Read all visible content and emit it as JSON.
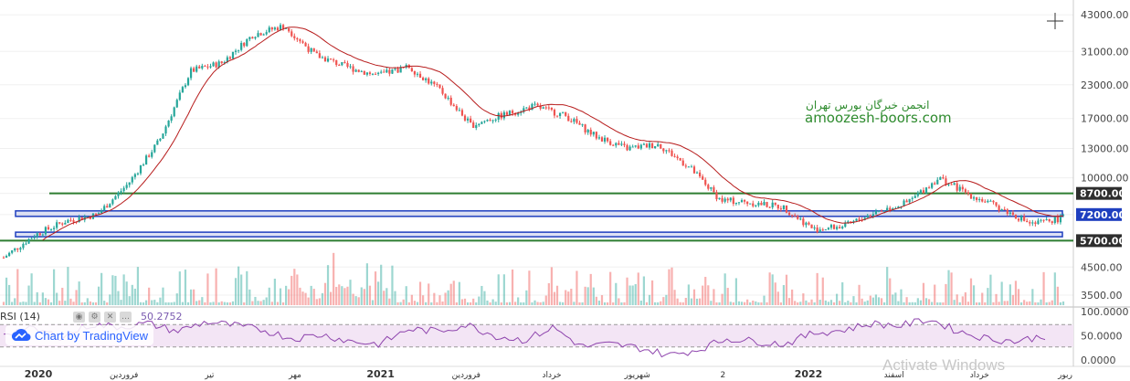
{
  "chart_data": {
    "type": "candlestick",
    "watermark": {
      "fa": "انجمن خبرگان بورس تهران",
      "en": "amoozesh-boors.com"
    },
    "price_axis_ticks": [
      "43000.00",
      "31000.00",
      "23000.00",
      "17000.00",
      "13000.00",
      "10000.00",
      "8700.00",
      "7200.00",
      "5700.00",
      "4500.00",
      "3500.00"
    ],
    "levels": [
      {
        "label": "8700.00",
        "value": 8700,
        "kind": "green-line",
        "color": "#2e7d32"
      },
      {
        "label": "7200.00",
        "value": 7200,
        "kind": "blue-box",
        "color": "#1f3fbf"
      },
      {
        "label": "5700.00",
        "value": 5700,
        "kind": "green-line",
        "color": "#2e7d32"
      }
    ],
    "time_labels": [
      "2020",
      "فروردین",
      "تیر",
      "مهر",
      "2021",
      "فروردین",
      "خرداد",
      "شهریور",
      "2",
      "2022",
      "اسفند",
      "خرداد",
      "ربور"
    ],
    "price_path": [
      [
        "2019-12",
        4900
      ],
      [
        "2020-01",
        6000
      ],
      [
        "2020-02",
        6800
      ],
      [
        "2020-03",
        7200
      ],
      [
        "2020-04",
        9500
      ],
      [
        "2020-05",
        14000
      ],
      [
        "2020-06",
        26000
      ],
      [
        "2020-07",
        28000
      ],
      [
        "2020-08",
        36000
      ],
      [
        "2020-09",
        39000
      ],
      [
        "2020-10",
        30000
      ],
      [
        "2020-11",
        27000
      ],
      [
        "2020-12",
        25000
      ],
      [
        "2021-01",
        27000
      ],
      [
        "2021-02",
        22000
      ],
      [
        "2021-03",
        16000
      ],
      [
        "2021-04",
        17500
      ],
      [
        "2021-05",
        19000
      ],
      [
        "2021-06",
        17500
      ],
      [
        "2021-07",
        14500
      ],
      [
        "2021-08",
        13000
      ],
      [
        "2021-09",
        13500
      ],
      [
        "2021-10",
        11000
      ],
      [
        "2021-11",
        8200
      ],
      [
        "2021-12",
        8000
      ],
      [
        "2022-01",
        7700
      ],
      [
        "2022-02",
        6300
      ],
      [
        "2022-03",
        6500
      ],
      [
        "2022-04",
        7400
      ],
      [
        "2022-05",
        8000
      ],
      [
        "2022-06",
        10000
      ],
      [
        "2022-07",
        8600
      ],
      [
        "2022-08",
        7600
      ],
      [
        "2022-09",
        6600
      ],
      [
        "2022-10",
        7000
      ]
    ],
    "rsi": {
      "label": "RSI (14)",
      "value": "50.2752",
      "ticks": [
        "100.0000",
        "50.0000",
        "0.0000"
      ],
      "bands": [
        30,
        70
      ],
      "path": [
        55,
        62,
        48,
        70,
        66,
        72,
        58,
        75,
        68,
        60,
        45,
        52,
        40,
        35,
        62,
        58,
        70,
        50,
        42,
        65,
        30,
        35,
        28,
        15,
        25,
        45,
        40,
        35,
        55,
        60,
        72,
        68,
        80,
        58,
        45,
        40,
        50
      ]
    },
    "volume_axis_ticks": []
  },
  "ui": {
    "tv_text": "Chart by TradingView",
    "activate_text": "Activate Windows"
  },
  "colors": {
    "up": "#26a69a",
    "down": "#ef5350",
    "ma": "#b71c1c",
    "rsi": "#8e44ad",
    "rsi_band_fill": "#f3e5f5"
  }
}
